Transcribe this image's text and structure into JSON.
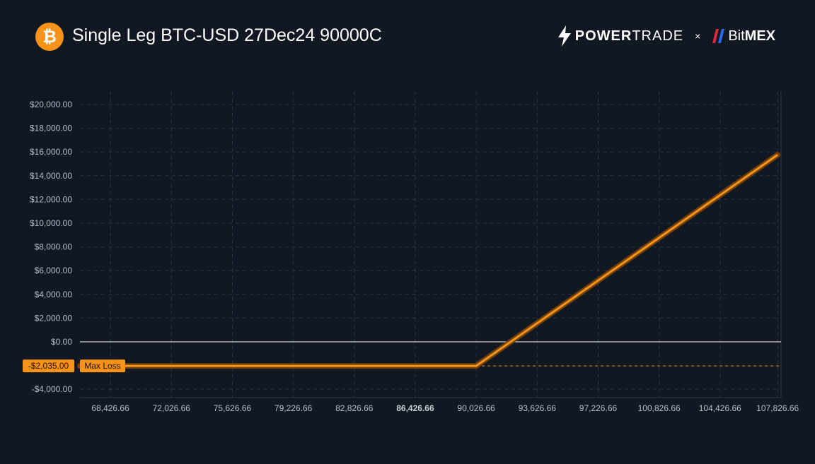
{
  "header": {
    "logo_glyph": "₿",
    "title": "Single Leg BTC-USD 27Dec24 90000C",
    "brand_left_bold": "POWER",
    "brand_left_rest": "TRADE",
    "separator": "×",
    "brand_right_rest": "Bit",
    "brand_right_bold": "MEX",
    "icons": {
      "logo": "bitcoin-icon",
      "powertrade": "lightning-bolt-icon",
      "bitmex": "bitmex-mark-icon"
    }
  },
  "colors": {
    "background": "#121821",
    "payoff_line": "#f7931a",
    "grid": "#2c3441",
    "zero_line": "#ffffff",
    "max_loss_badge": "#f7931a"
  },
  "chart_data": {
    "type": "line",
    "title": "",
    "xlabel": "",
    "ylabel": "",
    "grid": true,
    "series": [
      {
        "x": [
          66626.66,
          90026.66,
          107826.66
        ],
        "y": [
          -2035,
          -2035,
          15765
        ]
      }
    ],
    "xlim": [
      66626.66,
      108026.66
    ],
    "ylim": [
      -4000,
      20000
    ],
    "x_ticks": [
      68426.66,
      72026.66,
      75626.66,
      79226.66,
      82826.66,
      86426.66,
      90026.66,
      93626.66,
      97226.66,
      100826.66,
      104426.66,
      107826.66
    ],
    "x_tick_labels": [
      "68,426.66",
      "72,026.66",
      "75,626.66",
      "79,226.66",
      "82,826.66",
      "86,426.66",
      "90,026.66",
      "93,626.66",
      "97,226.66",
      "100,826.66",
      "104,426.66",
      "107,826.66"
    ],
    "x_highlight_label": "86,426.66",
    "y_ticks": [
      20000,
      18000,
      16000,
      14000,
      12000,
      10000,
      8000,
      6000,
      4000,
      2000,
      0,
      -4000
    ],
    "y_tick_labels": [
      "$20,000.00",
      "$18,000.00",
      "$16,000.00",
      "$14,000.00",
      "$12,000.00",
      "$10,000.00",
      "$8,000.00",
      "$6,000.00",
      "$4,000.00",
      "$2,000.00",
      "$0.00",
      "-$4,000.00"
    ],
    "max_loss": {
      "value": -2035,
      "value_label": "-$2,035.00",
      "label": "Max Loss"
    }
  }
}
